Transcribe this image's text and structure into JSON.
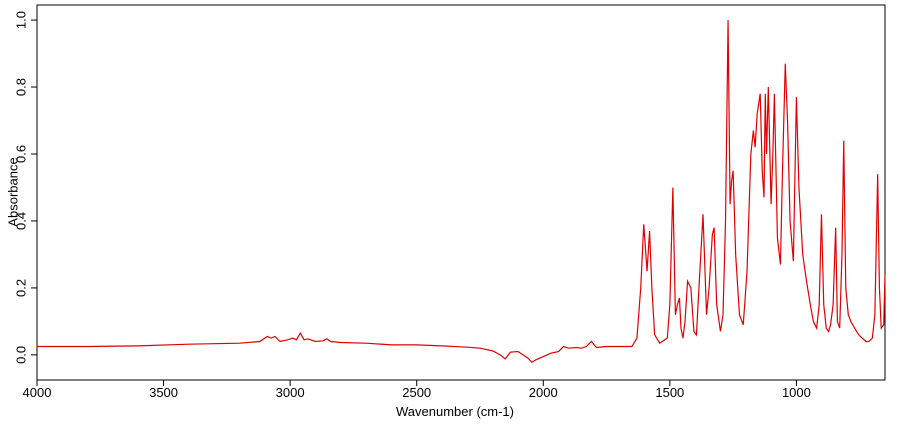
{
  "chart_data": {
    "type": "line",
    "xlabel": "Wavenumber (cm-1)",
    "ylabel": "Absorbance",
    "x": [
      4000,
      3800,
      3600,
      3400,
      3200,
      3120,
      3090,
      3075,
      3060,
      3040,
      3010,
      2990,
      2975,
      2960,
      2945,
      2930,
      2900,
      2870,
      2855,
      2840,
      2800,
      2700,
      2600,
      2500,
      2400,
      2300,
      2250,
      2200,
      2170,
      2150,
      2130,
      2100,
      2080,
      2060,
      2045,
      2030,
      2000,
      1970,
      1940,
      1920,
      1900,
      1870,
      1850,
      1830,
      1810,
      1790,
      1750,
      1700,
      1650,
      1630,
      1615,
      1603,
      1590,
      1580,
      1571,
      1560,
      1540,
      1510,
      1500,
      1488,
      1478,
      1470,
      1462,
      1456,
      1448,
      1440,
      1430,
      1417,
      1405,
      1395,
      1385,
      1369,
      1355,
      1345,
      1332,
      1325,
      1315,
      1300,
      1290,
      1280,
      1270,
      1262,
      1256,
      1250,
      1240,
      1225,
      1210,
      1195,
      1180,
      1170,
      1163,
      1155,
      1143,
      1135,
      1128,
      1123,
      1118,
      1111,
      1100,
      1093,
      1087,
      1075,
      1063,
      1055,
      1044,
      1035,
      1025,
      1012,
      1000,
      990,
      975,
      960,
      945,
      933,
      920,
      910,
      901,
      892,
      882,
      873,
      865,
      855,
      845,
      838,
      829,
      820,
      813,
      805,
      795,
      785,
      770,
      754,
      740,
      725,
      714,
      700,
      690,
      679,
      672,
      665,
      655,
      650
    ],
    "series": [
      {
        "color": "#e00000",
        "values": [
          0.025,
          0.025,
          0.027,
          0.032,
          0.035,
          0.04,
          0.055,
          0.05,
          0.055,
          0.04,
          0.045,
          0.05,
          0.045,
          0.065,
          0.045,
          0.048,
          0.04,
          0.042,
          0.048,
          0.04,
          0.037,
          0.035,
          0.03,
          0.03,
          0.027,
          0.023,
          0.02,
          0.012,
          0.0,
          -0.012,
          0.008,
          0.01,
          0.0,
          -0.01,
          -0.022,
          -0.015,
          -0.005,
          0.005,
          0.01,
          0.025,
          0.02,
          0.022,
          0.02,
          0.025,
          0.04,
          0.022,
          0.025,
          0.025,
          0.025,
          0.05,
          0.2,
          0.39,
          0.25,
          0.37,
          0.2,
          0.06,
          0.035,
          0.05,
          0.15,
          0.5,
          0.12,
          0.15,
          0.17,
          0.08,
          0.05,
          0.1,
          0.22,
          0.2,
          0.07,
          0.06,
          0.2,
          0.42,
          0.12,
          0.2,
          0.36,
          0.38,
          0.15,
          0.07,
          0.12,
          0.4,
          1.0,
          0.45,
          0.52,
          0.55,
          0.3,
          0.12,
          0.09,
          0.25,
          0.6,
          0.67,
          0.62,
          0.72,
          0.78,
          0.55,
          0.47,
          0.78,
          0.6,
          0.8,
          0.45,
          0.6,
          0.78,
          0.35,
          0.27,
          0.55,
          0.87,
          0.7,
          0.4,
          0.28,
          0.77,
          0.5,
          0.3,
          0.22,
          0.15,
          0.1,
          0.08,
          0.15,
          0.42,
          0.15,
          0.08,
          0.07,
          0.09,
          0.15,
          0.38,
          0.1,
          0.08,
          0.3,
          0.64,
          0.2,
          0.12,
          0.1,
          0.08,
          0.06,
          0.05,
          0.04,
          0.04,
          0.05,
          0.12,
          0.54,
          0.2,
          0.08,
          0.09,
          0.24
        ]
      }
    ],
    "xlim": [
      4000,
      650
    ],
    "xticks": [
      4000,
      3500,
      3000,
      2500,
      2000,
      1500,
      1000
    ],
    "ylim": [
      -0.075,
      1.045
    ],
    "yticks": [
      {
        "value": 0,
        "label": "0.0"
      },
      0.2,
      0.4,
      0.6,
      0.8,
      {
        "value": 1,
        "label": "1.0"
      }
    ]
  }
}
